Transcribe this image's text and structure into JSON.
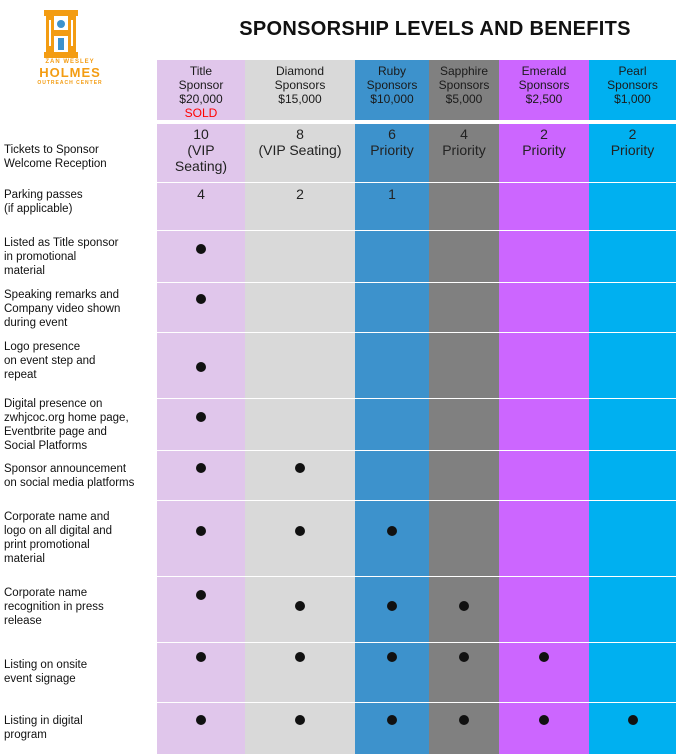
{
  "logo": {
    "line1": "ZAN WESLEY",
    "line2": "HOLMES",
    "line3": "OUTREACH CENTER"
  },
  "title": "SPONSORSHIP LEVELS AND BENEFITS",
  "colors": {
    "title": "#e0c6eb",
    "diamond": "#d9d9d9",
    "ruby": "#3d92cc",
    "sapphire": "#808080",
    "emerald": "#cc66ff",
    "pearl": "#00b0f0",
    "sold": "#ff0000"
  },
  "tiers": [
    {
      "name1": "Title",
      "name2": "Sponsor",
      "price": "$20,000",
      "status": "SOLD"
    },
    {
      "name1": "Diamond",
      "name2": "Sponsors",
      "price": "$15,000"
    },
    {
      "name1": "Ruby",
      "name2": "Sponsors",
      "price": "$10,000"
    },
    {
      "name1": "Sapphire",
      "name2": "Sponsors",
      "price": "$5,000"
    },
    {
      "name1": "Emerald",
      "name2": "Sponsors",
      "price": "$2,500"
    },
    {
      "name1": "Pearl",
      "name2": "Sponsors",
      "price": "$1,000"
    }
  ],
  "rows": [
    {
      "label": [
        "Tickets to Sponsor",
        "Welcome Reception"
      ],
      "values": [
        [
          "10",
          "(VIP",
          "Seating)"
        ],
        [
          "8",
          "(VIP Seating)"
        ],
        [
          "6",
          "Priority"
        ],
        [
          "4",
          "Priority"
        ],
        [
          "2",
          "Priority"
        ],
        [
          "2",
          "Priority"
        ]
      ]
    },
    {
      "label": [
        "Parking passes",
        "(if applicable)"
      ],
      "values": [
        [
          "4"
        ],
        [
          "2"
        ],
        [
          "1"
        ],
        [],
        [],
        []
      ]
    },
    {
      "label": [
        "Listed as Title sponsor",
        "in promotional",
        "material"
      ],
      "included": [
        true,
        false,
        false,
        false,
        false,
        false
      ]
    },
    {
      "label": [
        "Speaking remarks and",
        "Company video shown",
        "during event"
      ],
      "included": [
        true,
        false,
        false,
        false,
        false,
        false
      ]
    },
    {
      "label": [
        "Logo presence",
        "on event step and",
        "repeat"
      ],
      "included": [
        true,
        false,
        false,
        false,
        false,
        false
      ]
    },
    {
      "label": [
        "Digital presence on",
        "zwhjcoc.org home page,",
        "Eventbrite page and",
        "Social Platforms"
      ],
      "included": [
        true,
        false,
        false,
        false,
        false,
        false
      ]
    },
    {
      "label": [
        "Sponsor announcement",
        "on social media platforms"
      ],
      "included": [
        true,
        true,
        false,
        false,
        false,
        false
      ]
    },
    {
      "label": [
        "Corporate name and",
        "logo on all digital and",
        "print promotional",
        "material"
      ],
      "included": [
        true,
        true,
        true,
        false,
        false,
        false
      ]
    },
    {
      "label": [
        "Corporate name",
        "recognition in press",
        "release"
      ],
      "included": [
        true,
        true,
        true,
        true,
        false,
        false
      ]
    },
    {
      "label": [
        "Listing on onsite",
        "event signage"
      ],
      "included": [
        true,
        true,
        true,
        true,
        true,
        false
      ]
    },
    {
      "label": [
        "Listing in digital",
        "program"
      ],
      "included": [
        true,
        true,
        true,
        true,
        true,
        true
      ]
    }
  ]
}
